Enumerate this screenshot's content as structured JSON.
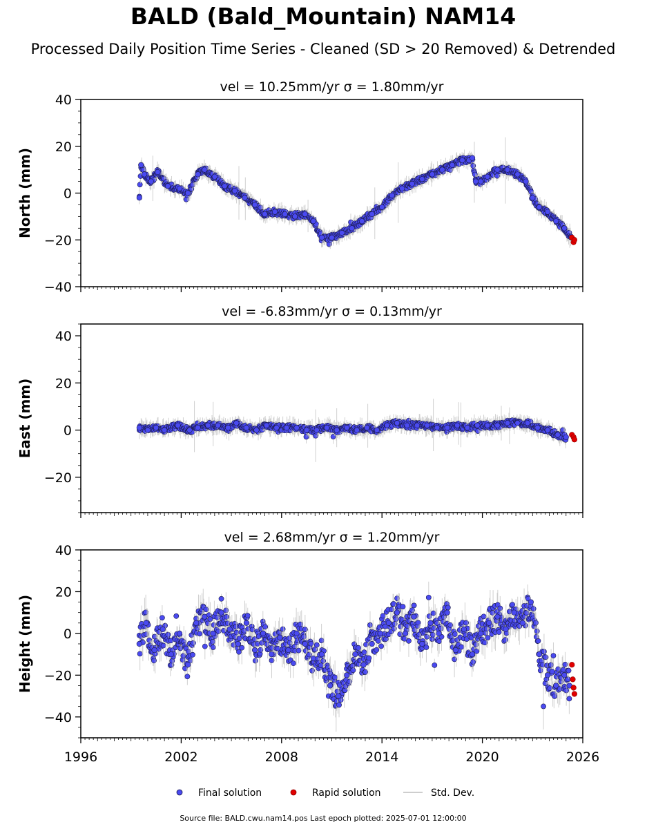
{
  "figure": {
    "title": "BALD (Bald_Mountain) NAM14",
    "subtitle": "Processed Daily Position Time Series - Cleaned (SD > 20 Removed) & Detrended",
    "source_note": "Source file: BALD.cwu.nam14.pos  Last epoch plotted: 2025-07-01 12:00:00"
  },
  "legend": {
    "final": "Final solution",
    "rapid": "Rapid solution",
    "std": "Std. Dev."
  },
  "colors": {
    "final_fill": "#4a4af0",
    "final_edge": "#1a1a4a",
    "rapid_fill": "#e00000",
    "rapid_edge": "#8b0000",
    "std_dev": "#bdbdbd"
  },
  "chart_data": [
    {
      "type": "scatter",
      "title": "vel = 10.25mm/yr   σ = 1.80mm/yr",
      "ylabel": "North (mm)",
      "xlim": [
        1996,
        2026
      ],
      "ylim": [
        -40,
        40
      ],
      "xticks": [
        1996,
        2002,
        2008,
        2014,
        2020,
        2026
      ],
      "yticks": [
        -40,
        -20,
        0,
        20,
        40
      ],
      "series": [
        {
          "name": "Final solution",
          "x": [
            1999.5,
            1999.6,
            1999.8,
            2000.2,
            2000.6,
            2001.2,
            2001.9,
            2002.4,
            2003.0,
            2003.4,
            2004.0,
            2004.6,
            2005.2,
            2005.8,
            2006.4,
            2007.0,
            2007.6,
            2008.2,
            2008.8,
            2009.4,
            2009.9,
            2010.4,
            2011.0,
            2011.6,
            2012.2,
            2012.8,
            2013.4,
            2014.0,
            2014.6,
            2015.2,
            2015.8,
            2016.4,
            2017.0,
            2017.6,
            2018.2,
            2018.8,
            2019.2,
            2019.4,
            2019.6,
            2019.9,
            2020.3,
            2020.9,
            2021.5,
            2022.1,
            2022.6,
            2023.0,
            2023.4,
            2023.9,
            2024.4,
            2024.9,
            2025.3
          ],
          "y": [
            -2,
            12,
            8,
            5,
            9,
            3,
            2,
            0,
            8,
            10,
            7,
            3,
            1,
            -2,
            -5,
            -9,
            -8,
            -9,
            -10,
            -9,
            -12,
            -19,
            -19,
            -17,
            -15,
            -12,
            -9,
            -6,
            -1,
            2,
            4,
            6,
            8,
            10,
            12,
            14,
            14,
            15,
            5,
            5,
            7,
            10,
            10,
            8,
            5,
            -2,
            -6,
            -8,
            -12,
            -15,
            -19
          ]
        },
        {
          "name": "Rapid solution",
          "x": [
            2025.35,
            2025.45,
            2025.5
          ],
          "y": [
            -19,
            -21,
            -20
          ]
        }
      ]
    },
    {
      "type": "scatter",
      "title": "vel = -6.83mm/yr   σ = 0.13mm/yr",
      "ylabel": "East (mm)",
      "xlim": [
        1996,
        2026
      ],
      "ylim": [
        -35,
        45
      ],
      "xticks": [
        1996,
        2002,
        2008,
        2014,
        2020,
        2026
      ],
      "yticks": [
        -20,
        0,
        20,
        40
      ],
      "series": [
        {
          "name": "Final solution",
          "x": [
            1999.5,
            2000.0,
            2000.5,
            2001.0,
            2001.8,
            2002.5,
            2003.0,
            2003.6,
            2004.2,
            2004.8,
            2005.3,
            2005.9,
            2006.5,
            2007.1,
            2007.7,
            2008.3,
            2008.9,
            2009.5,
            2010.1,
            2010.7,
            2011.3,
            2011.9,
            2012.5,
            2013.1,
            2013.7,
            2014.3,
            2014.9,
            2015.5,
            2016.1,
            2016.7,
            2017.3,
            2017.9,
            2018.5,
            2019.1,
            2019.7,
            2020.3,
            2020.9,
            2021.5,
            2022.1,
            2022.7,
            2023.3,
            2023.9,
            2024.5,
            2025.0
          ],
          "y": [
            1,
            0,
            1,
            0,
            2,
            0,
            1,
            2,
            2,
            1,
            3,
            1,
            0,
            2,
            1,
            1,
            1,
            0,
            0,
            1,
            0,
            1,
            0,
            1,
            0,
            2,
            3,
            2,
            2,
            2,
            1,
            1,
            2,
            1,
            2,
            2,
            2,
            3,
            3,
            3,
            1,
            0,
            -2,
            -3
          ]
        },
        {
          "name": "Rapid solution",
          "x": [
            2025.35,
            2025.45,
            2025.5
          ],
          "y": [
            -2,
            -3,
            -4
          ]
        }
      ]
    },
    {
      "type": "scatter",
      "title": "vel = 2.68mm/yr   σ = 1.20mm/yr",
      "ylabel": "Height (mm)",
      "xlim": [
        1996,
        2026
      ],
      "ylim": [
        -50,
        40
      ],
      "xticks": [
        1996,
        2002,
        2008,
        2014,
        2020,
        2026
      ],
      "yticks": [
        -40,
        -20,
        0,
        20,
        40
      ],
      "xticklabels": [
        "1996",
        "2002",
        "2008",
        "2014",
        "2020",
        "2026"
      ],
      "series": [
        {
          "name": "Final solution",
          "x": [
            1999.5,
            1999.9,
            2000.4,
            2000.9,
            2001.4,
            2001.9,
            2002.4,
            2002.9,
            2003.4,
            2003.9,
            2004.4,
            2004.9,
            2005.4,
            2005.9,
            2006.4,
            2006.9,
            2007.4,
            2007.9,
            2008.4,
            2008.9,
            2009.4,
            2009.9,
            2010.4,
            2010.9,
            2011.4,
            2011.9,
            2012.4,
            2012.9,
            2013.4,
            2013.9,
            2014.4,
            2014.9,
            2015.4,
            2015.9,
            2016.4,
            2016.9,
            2017.4,
            2017.9,
            2018.4,
            2018.9,
            2019.4,
            2019.9,
            2020.4,
            2020.9,
            2021.4,
            2021.9,
            2022.4,
            2022.9,
            2023.4,
            2023.9,
            2024.4,
            2024.9,
            2025.2
          ],
          "y": [
            -5,
            5,
            -8,
            2,
            -10,
            0,
            -15,
            5,
            8,
            0,
            10,
            2,
            -5,
            5,
            -8,
            0,
            -10,
            -2,
            -8,
            0,
            -5,
            -12,
            -10,
            -25,
            -30,
            -20,
            -10,
            -15,
            -5,
            0,
            5,
            10,
            0,
            8,
            -5,
            5,
            0,
            10,
            -8,
            2,
            -10,
            0,
            5,
            8,
            2,
            10,
            5,
            15,
            -10,
            -20,
            -25,
            -20,
            -25
          ]
        },
        {
          "name": "Rapid solution",
          "x": [
            2025.35,
            2025.4,
            2025.45,
            2025.5
          ],
          "y": [
            -15,
            -22,
            -26,
            -29
          ]
        }
      ]
    }
  ]
}
